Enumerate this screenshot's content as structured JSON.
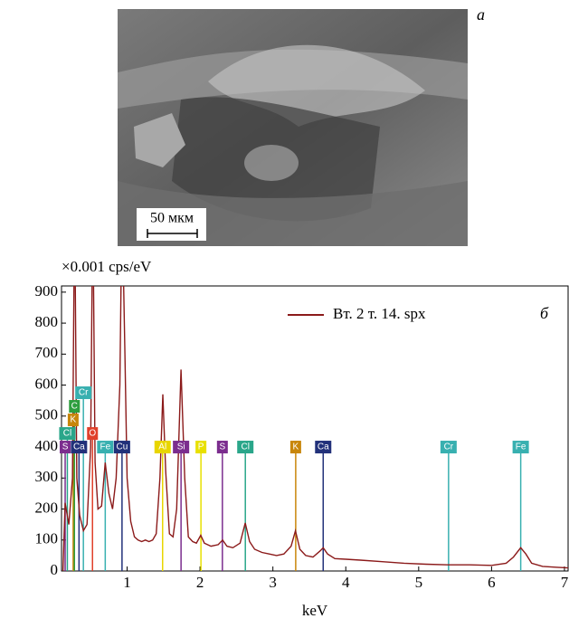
{
  "image": {
    "panel_label": "а",
    "scale_bar": "50 мкм"
  },
  "chart_data": {
    "type": "line",
    "panel_label": "б",
    "ylabel": "×0.001 cps/eV",
    "xlabel": "keV",
    "xlim": [
      0.1,
      7.05
    ],
    "xticks": [
      1,
      2,
      3,
      4,
      5,
      6,
      7
    ],
    "ylim": [
      0,
      920
    ],
    "yticks": [
      0,
      100,
      200,
      300,
      400,
      500,
      600,
      700,
      800,
      900
    ],
    "legend": "upper right",
    "x": [
      0.12,
      0.15,
      0.2,
      0.25,
      0.28,
      0.31,
      0.35,
      0.4,
      0.45,
      0.5,
      0.53,
      0.56,
      0.6,
      0.65,
      0.7,
      0.75,
      0.8,
      0.85,
      0.9,
      0.93,
      0.97,
      1.0,
      1.05,
      1.1,
      1.15,
      1.2,
      1.25,
      1.3,
      1.35,
      1.4,
      1.45,
      1.49,
      1.53,
      1.58,
      1.63,
      1.68,
      1.74,
      1.79,
      1.84,
      1.9,
      1.95,
      2.01,
      2.06,
      2.15,
      2.25,
      2.31,
      2.37,
      2.45,
      2.55,
      2.62,
      2.68,
      2.75,
      2.85,
      2.95,
      3.05,
      3.15,
      3.25,
      3.31,
      3.37,
      3.45,
      3.55,
      3.65,
      3.69,
      3.75,
      3.85,
      4.0,
      4.2,
      4.5,
      4.8,
      5.1,
      5.4,
      5.7,
      6.0,
      6.2,
      6.3,
      6.4,
      6.47,
      6.55,
      6.7,
      6.9,
      7.05
    ],
    "series": [
      {
        "name": "Вт. 2 т. 14. spx",
        "color": "#8b1a1a",
        "values": [
          0,
          220,
          150,
          300,
          1200,
          300,
          180,
          130,
          150,
          400,
          1200,
          350,
          200,
          210,
          350,
          250,
          200,
          300,
          600,
          1200,
          700,
          300,
          160,
          110,
          100,
          95,
          100,
          95,
          100,
          120,
          300,
          570,
          320,
          120,
          110,
          200,
          650,
          300,
          110,
          95,
          90,
          115,
          90,
          80,
          85,
          100,
          80,
          75,
          90,
          155,
          95,
          70,
          60,
          55,
          50,
          55,
          80,
          130,
          70,
          50,
          45,
          65,
          75,
          55,
          40,
          38,
          35,
          30,
          25,
          22,
          20,
          20,
          18,
          25,
          45,
          75,
          55,
          25,
          15,
          12,
          10
        ]
      }
    ],
    "markers": [
      {
        "label": "S",
        "energy": 0.15,
        "color": "#7b2d8e"
      },
      {
        "label": "Cl",
        "energy": 0.18,
        "color": "#2aa68a"
      },
      {
        "label": "K",
        "energy": 0.26,
        "color": "#c8860a"
      },
      {
        "label": "C",
        "energy": 0.277,
        "color": "#2e9e3e"
      },
      {
        "label": "Ca",
        "energy": 0.34,
        "color": "#22317a"
      },
      {
        "label": "O",
        "energy": 0.525,
        "color": "#e0402a"
      },
      {
        "label": "Cr",
        "energy": 0.4,
        "color": "#38b0b0"
      },
      {
        "label": "Fe",
        "energy": 0.7,
        "color": "#38b0b0"
      },
      {
        "label": "Cu",
        "energy": 0.93,
        "color": "#22317a"
      },
      {
        "label": "Al",
        "energy": 1.487,
        "color": "#e8d500"
      },
      {
        "label": "Si",
        "energy": 1.74,
        "color": "#7b2d8e"
      },
      {
        "label": "P",
        "energy": 2.013,
        "color": "#e8e000"
      },
      {
        "label": "S",
        "energy": 2.307,
        "color": "#7b2d8e"
      },
      {
        "label": "Cl",
        "energy": 2.622,
        "color": "#2aa68a"
      },
      {
        "label": "K",
        "energy": 3.313,
        "color": "#c8860a"
      },
      {
        "label": "Ca",
        "energy": 3.69,
        "color": "#22317a"
      },
      {
        "label": "Cr",
        "energy": 5.41,
        "color": "#38b0b0"
      },
      {
        "label": "Fe",
        "energy": 6.4,
        "color": "#38b0b0"
      }
    ]
  }
}
